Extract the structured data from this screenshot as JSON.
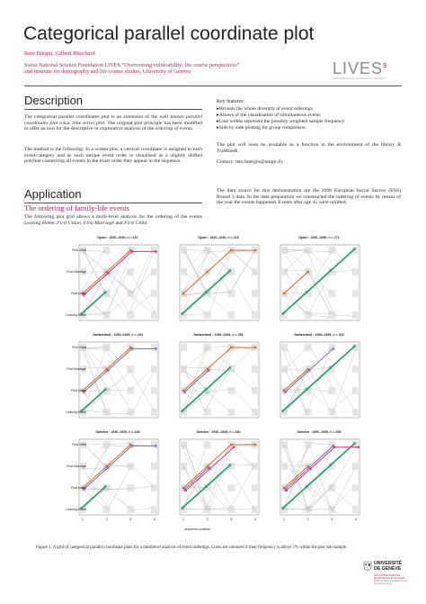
{
  "header": {
    "title": "Categorical parallel coordinate plot",
    "authors": "Reto Bürgin, Gilbert Ritschard",
    "affiliation_lines": [
      "Swiss National Science Foundation LIVES “Overcoming vulnerability: life course perspectives”",
      "and Institute for demography and life course studies, University of Geneva"
    ]
  },
  "logos": {
    "lives_wordmark": "LIVES",
    "lives_tagline": "Swiss National Centre of Competence in Research",
    "unige_wordmark_lines": [
      "UNIVERSITÉ",
      "DE GENÈVE"
    ],
    "unige_faculty": "FACULTÉ DES SCIENCES ÉCONOMIQUES ET SOCIALES",
    "unige_institute": "Institut d'études démographiques et du parcours de vie",
    "accent_color": "#c2185b"
  },
  "description": {
    "heading": "Description",
    "para1_a": "The categorical parallel coordinates plot is an extension of the well known ",
    "para1_em": "parallel coordinates plot",
    "para1_b": " a.k.a. ",
    "para1_em2": "time series plot",
    "para1_c": ". The original plot principle has been modified to offer an tool for the descriptive or explorative analysis of the ",
    "para1_em3": "ordering of events",
    "para1_d": ".",
    "para2": "The method is the following: In a scatter plot, a vertical coordinate is assigned to each event-category and as each unique event order is visualised as a slightly shifted polyline connecting all events in the exact order they appear in the sequence.",
    "key_features_label": "Key features:",
    "key_features": [
      "Reveals the whole diversity of event orderings",
      "Allows of the visualisation of simultaneous events",
      "Line widths represent the possibly weighted sample frequency",
      "Side by side plotting for group comparison"
    ],
    "availability": "The plot will soon be available as a function in the environment of the library R TraMineR.",
    "contact": "Contact: reto.buergin@unige.ch."
  },
  "application": {
    "heading": "Application",
    "subheading": "The ordering of family-life events",
    "intro_a": "The following plot grid allows a multi-level analysis for the ordering of the events ",
    "intro_em": "Leaving Home, First Union, First Marriage",
    "intro_b": " and ",
    "intro_em2": "First Child",
    "intro_c": ".",
    "data_source": "The data source for this demonstration are the 2006 European Social Survey (ESS) Round 3 data. In the data preparation we constructed the ordering of events by means of the year the events happened. Events after age 45 were omitted."
  },
  "figure": {
    "y_categories": [
      "First Child",
      "First Marriage",
      "First Union",
      "Leaving Home"
    ],
    "x_ticks": [
      "1",
      "2",
      "3",
      "4"
    ],
    "x_axis_label": "sequence position",
    "panels": [
      {
        "title": "Spain : 1930–1939, n = 187"
      },
      {
        "title": "Spain : 1940–1949, n = 215"
      },
      {
        "title": "Spain : 1950–1959, n = 271"
      },
      {
        "title": "Switzerland : 1930–1939, n = 204"
      },
      {
        "title": "Switzerland : 1940–1949, n = 291"
      },
      {
        "title": "Switzerland : 1950–1959, n = 310"
      },
      {
        "title": "Sweden : 1930–1939, n = 168"
      },
      {
        "title": "Sweden : 1940–1949, n = 284"
      },
      {
        "title": "Sweden : 1950–1959, n = 308"
      }
    ],
    "caption": "Figure 1: A grid of categorical parallel coordinate plots for a multilevel analysis of event orderings. Lines are coloured if their frequency is above 5% within the plot sub-sample.",
    "colors": {
      "green": "#1b9e77",
      "orange": "#e6661a",
      "magenta": "#e7298a",
      "purple": "#7570b3",
      "grey": "#b8b8b8",
      "box": "#e6e6e6"
    }
  }
}
